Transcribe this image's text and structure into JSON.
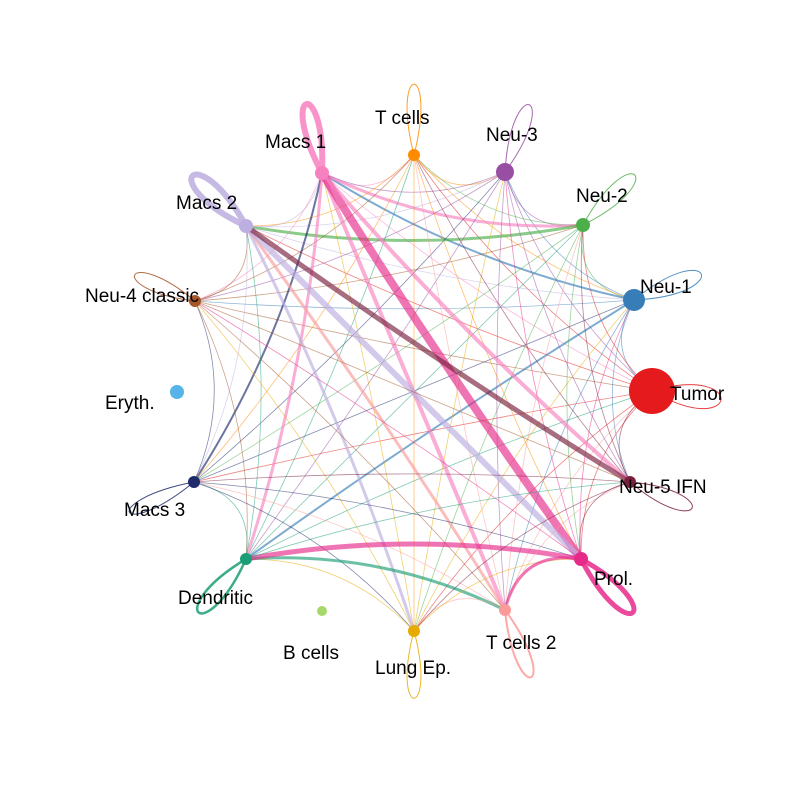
{
  "diagram": {
    "type": "cell-communication-circle",
    "nodes": [
      {
        "id": "tumor",
        "label": "Tumor",
        "color": "#e41a1c",
        "size": "largest"
      },
      {
        "id": "neu1",
        "label": "Neu-1",
        "color": "#377eb8",
        "size": "large"
      },
      {
        "id": "neu2",
        "label": "Neu-2",
        "color": "#4daf4a",
        "size": "small"
      },
      {
        "id": "neu3",
        "label": "Neu-3",
        "color": "#984ea3",
        "size": "medium"
      },
      {
        "id": "tcells",
        "label": "T cells",
        "color": "#ff8c00",
        "size": "small"
      },
      {
        "id": "macs1",
        "label": "Macs 1",
        "color": "#f781bf",
        "size": "small"
      },
      {
        "id": "macs2",
        "label": "Macs 2",
        "color": "#bcaee0",
        "size": "small"
      },
      {
        "id": "neu4",
        "label": "Neu-4 classic",
        "color": "#a65628",
        "size": "small"
      },
      {
        "id": "eryth",
        "label": "Eryth.",
        "color": "#56b4e9",
        "size": "small"
      },
      {
        "id": "macs3",
        "label": "Macs 3",
        "color": "#1f2a6b",
        "size": "small"
      },
      {
        "id": "dendritic",
        "label": "Dendritic",
        "color": "#1b9e77",
        "size": "small"
      },
      {
        "id": "bcells",
        "label": "B cells",
        "color": "#a6d96a",
        "size": "tiny"
      },
      {
        "id": "lungep",
        "label": "Lung Ep.",
        "color": "#e6ab02",
        "size": "small"
      },
      {
        "id": "tcells2",
        "label": "T cells 2",
        "color": "#fb9a99",
        "size": "small"
      },
      {
        "id": "prol",
        "label": "Prol.",
        "color": "#e7298a",
        "size": "small"
      },
      {
        "id": "neu5",
        "label": "Neu-5 IFN",
        "color": "#7a1f3d",
        "size": "small"
      }
    ]
  }
}
